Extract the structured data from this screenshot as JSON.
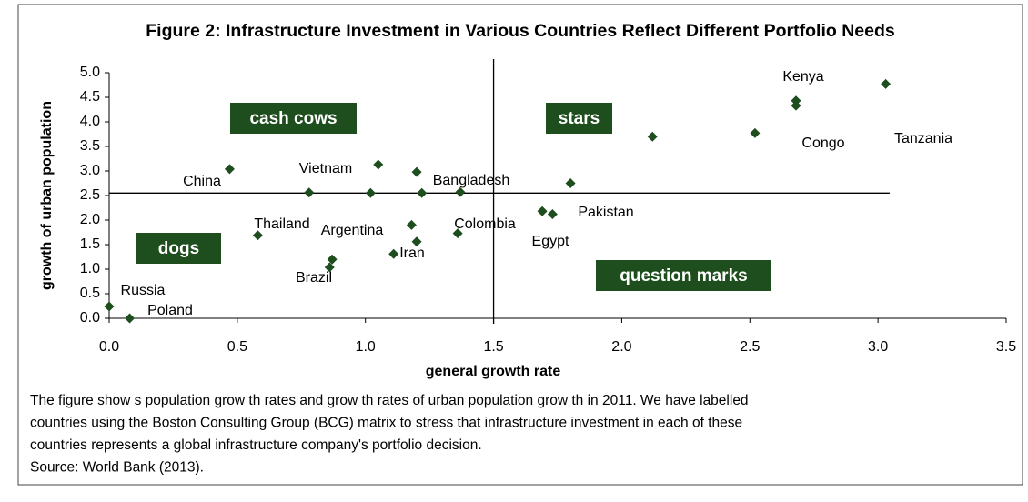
{
  "chart_data": {
    "type": "scatter",
    "title": "Figure 2: Infrastructure Investment in Various Countries Reflect Different Portfolio Needs",
    "x_label": "general growth rate",
    "y_label": "growth of urban population",
    "color": "#1e4d1e",
    "x": [
      0.0,
      0.08,
      0.47,
      0.58,
      0.78,
      0.87,
      0.86,
      1.02,
      1.05,
      1.18,
      1.11,
      1.2,
      1.2,
      1.22,
      1.37,
      1.36,
      1.69,
      1.73,
      1.8,
      2.12,
      2.52,
      2.68,
      2.68,
      3.03
    ],
    "values": [
      0.24,
      0.0,
      3.04,
      1.69,
      2.56,
      1.2,
      1.04,
      2.55,
      3.13,
      1.9,
      1.31,
      1.56,
      2.98,
      2.55,
      2.57,
      1.73,
      2.18,
      2.12,
      2.75,
      3.7,
      3.77,
      4.43,
      4.33,
      4.77
    ],
    "xlim": [
      0,
      3.5
    ],
    "ylim": [
      0,
      5
    ],
    "xticks": [
      {
        "value": 0,
        "label": "0.0"
      },
      0.5,
      {
        "value": 1,
        "label": "1.0"
      },
      1.5,
      {
        "value": 2,
        "label": "2.0"
      },
      2.5,
      {
        "value": 3,
        "label": "3.0"
      },
      3.5
    ],
    "yticks": [
      {
        "value": 0,
        "label": "0.0"
      },
      0.5,
      {
        "value": 1,
        "label": "1.0"
      },
      1.5,
      {
        "value": 2,
        "label": "2.0"
      },
      2.5,
      {
        "value": 3,
        "label": "3.0"
      },
      3.5,
      {
        "value": 4,
        "label": "4.0"
      },
      4.5,
      {
        "value": 5,
        "label": "5.0"
      }
    ],
    "grid": false,
    "divider_x": 1.5,
    "divider_y": 2.55,
    "annotations": [
      "Kenya",
      "Tanzania",
      "Congo",
      "China",
      "Vietnam",
      "Bangladesh",
      "Thailand",
      "Argentina",
      "Colombia",
      "Pakistan",
      "Egypt",
      "Iran",
      "Brazil",
      "Russia",
      "Poland"
    ],
    "quadrants": [
      "cash cows",
      "stars",
      "dogs",
      "question marks"
    ],
    "caption": [
      "The figure show s population grow th rates and grow th rates of urban population grow th in 2011. We have labelled",
      "countries using the Boston Consulting Group (BCG) matrix to stress that infrastructure investment in each of these",
      "countries represents a global infrastructure company's portfolio decision.",
      "Source: World Bank (2013)."
    ]
  }
}
